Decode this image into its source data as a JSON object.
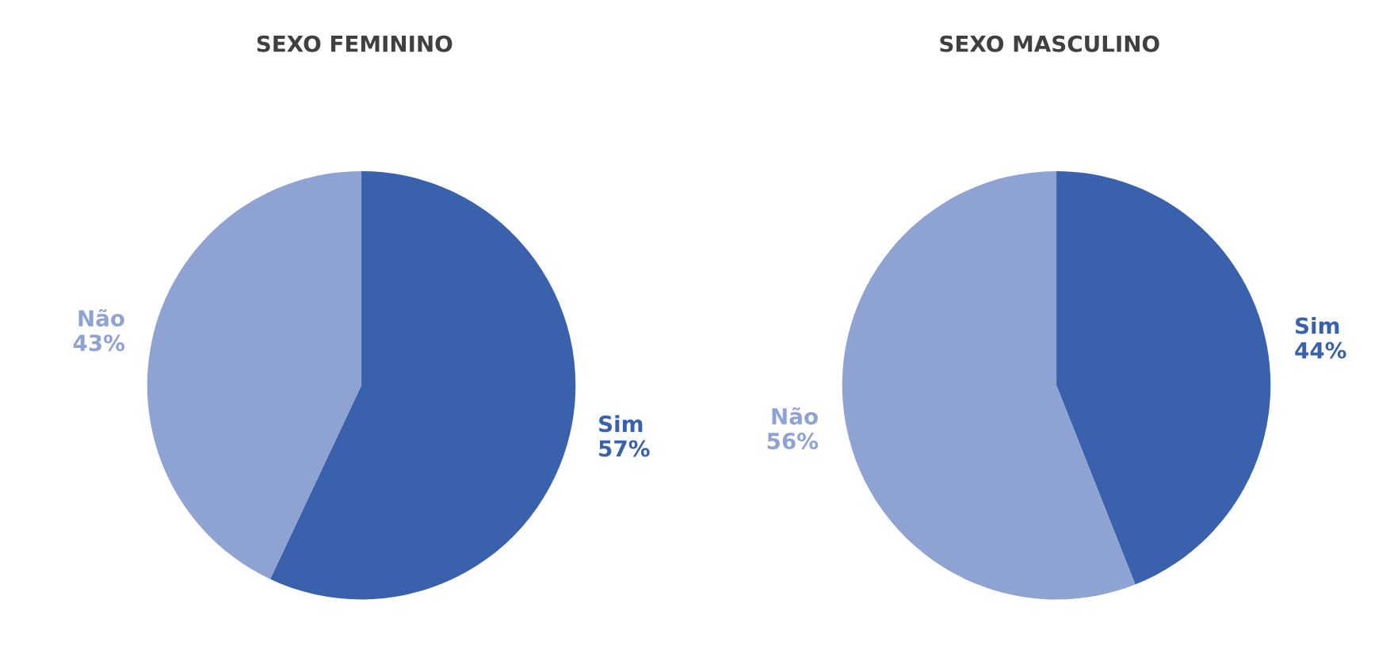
{
  "chart_data": [
    {
      "type": "pie",
      "title": "SEXO FEMININO",
      "categories": [
        "Sim",
        "Não"
      ],
      "values": [
        57,
        43
      ],
      "colors": [
        "#3a62ac",
        "#8fa3d3"
      ],
      "value_labels": [
        "57%",
        "43%"
      ],
      "legend": false
    },
    {
      "type": "pie",
      "title": "SEXO MASCULINO",
      "categories": [
        "Sim",
        "Não"
      ],
      "values": [
        44,
        56
      ],
      "colors": [
        "#3a62ac",
        "#8fa3d3"
      ],
      "value_labels": [
        "44%",
        "56%"
      ],
      "legend": false
    }
  ]
}
